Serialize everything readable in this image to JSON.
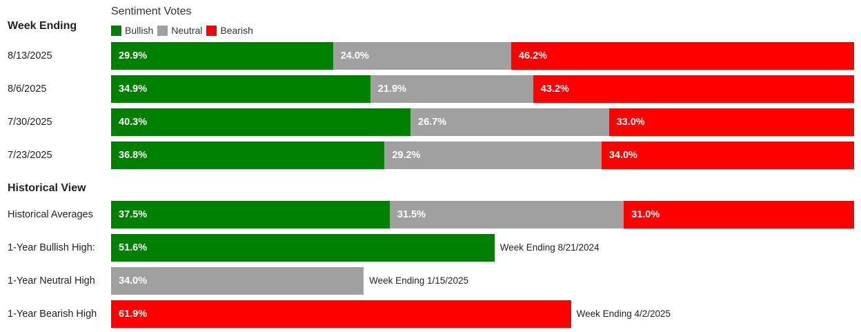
{
  "legend": {
    "title": "Sentiment Votes",
    "items": [
      {
        "label": "Bullish",
        "color": "#008000"
      },
      {
        "label": "Neutral",
        "color": "#a0a0a0"
      },
      {
        "label": "Bearish",
        "color": "#ff0000"
      }
    ]
  },
  "sections": {
    "week_ending": "Week Ending",
    "historical": "Historical View"
  },
  "chart_data": {
    "type": "bar",
    "stacked": true,
    "orientation": "horizontal",
    "series_colors": {
      "Bullish": "#008000",
      "Neutral": "#a0a0a0",
      "Bearish": "#ff0000"
    },
    "weekly": [
      {
        "label": "8/13/2025",
        "bullish": 29.9,
        "neutral": 24.0,
        "bearish": 46.2,
        "texts": [
          "29.9%",
          "24.0%",
          "46.2%"
        ]
      },
      {
        "label": "8/6/2025",
        "bullish": 34.9,
        "neutral": 21.9,
        "bearish": 43.2,
        "texts": [
          "34.9%",
          "21.9%",
          "43.2%"
        ]
      },
      {
        "label": "7/30/2025",
        "bullish": 40.3,
        "neutral": 26.7,
        "bearish": 33.0,
        "texts": [
          "40.3%",
          "26.7%",
          "33.0%"
        ]
      },
      {
        "label": "7/23/2025",
        "bullish": 36.8,
        "neutral": 29.2,
        "bearish": 34.0,
        "texts": [
          "36.8%",
          "29.2%",
          "34.0%"
        ]
      }
    ],
    "historical": [
      {
        "label": "Historical Averages",
        "bullish": 37.5,
        "neutral": 31.5,
        "bearish": 31.0,
        "texts": [
          "37.5%",
          "31.5%",
          "31.0%"
        ]
      },
      {
        "label": "1-Year Bullish High:",
        "series": "Bullish",
        "value": 51.6,
        "text": "51.6%",
        "note": "Week Ending 8/21/2024"
      },
      {
        "label": "1-Year Neutral High",
        "series": "Neutral",
        "value": 34.0,
        "text": "34.0%",
        "note": "Week Ending 1/15/2025"
      },
      {
        "label": "1-Year Bearish High",
        "series": "Bearish",
        "value": 61.9,
        "text": "61.9%",
        "note": "Week Ending 4/2/2025"
      }
    ]
  }
}
